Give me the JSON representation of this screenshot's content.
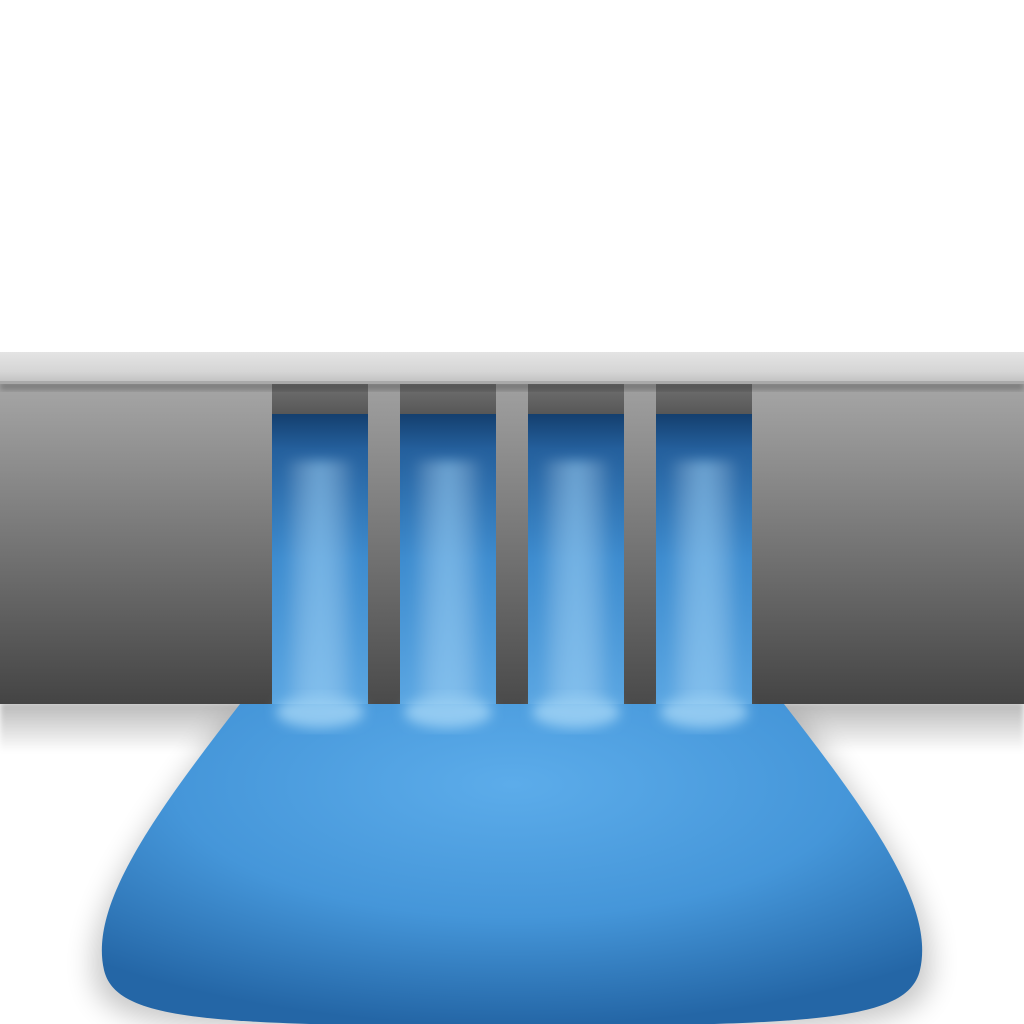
{
  "scene": {
    "subject": "dam-spillway",
    "gate_count": 4,
    "colors": {
      "background": "#ffffff",
      "crest_light": "#e2e2e2",
      "crest_dark": "#bdbdbd",
      "wall_top": "#a3a3a3",
      "wall_bottom": "#454545",
      "pier_top": "#9c9c9c",
      "pier_bottom": "#4c4c4c",
      "gate_lintel": "#5a5a5a",
      "water_dark": "#1b548f",
      "water_mid": "#3f8fd2",
      "water_light": "#6db5ea",
      "pool_center": "#5aaae8",
      "pool_edge": "#2a6fae"
    }
  }
}
